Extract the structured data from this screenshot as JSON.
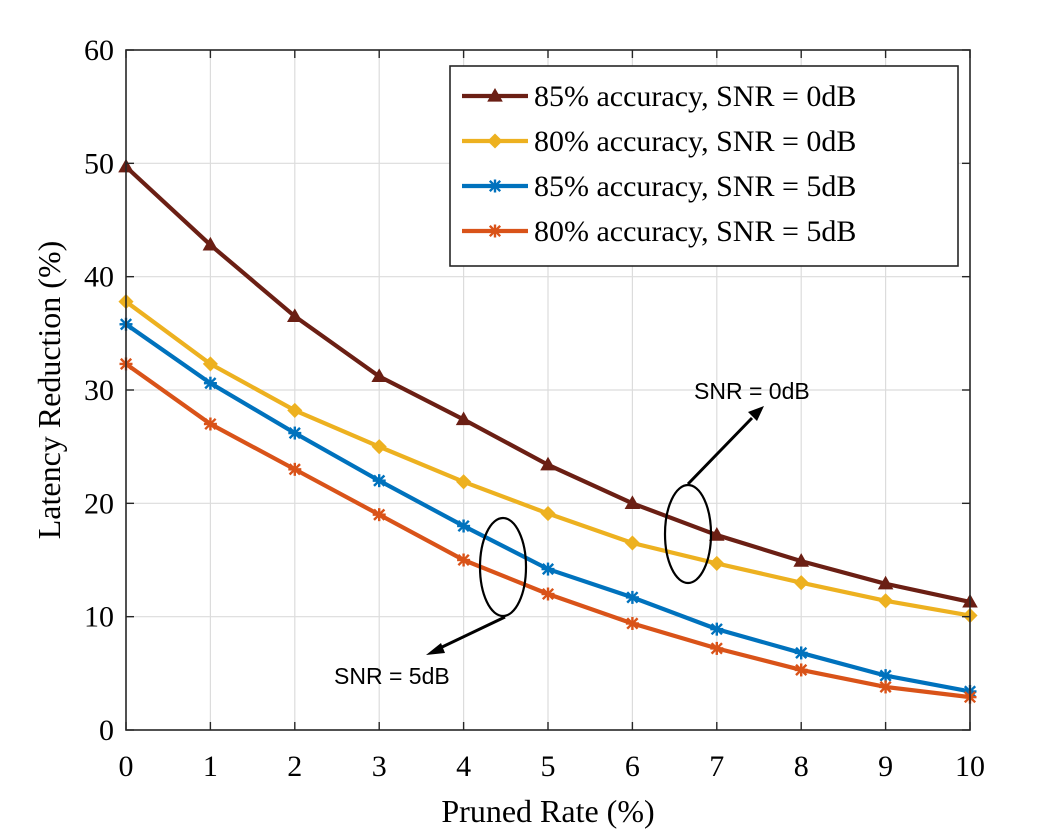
{
  "chart_data": {
    "type": "line",
    "xlabel": "Pruned Rate (%)",
    "ylabel": "Latency Reduction (%)",
    "xlim": [
      0,
      10
    ],
    "ylim": [
      0,
      60
    ],
    "x_ticks": [
      0,
      1,
      2,
      3,
      4,
      5,
      6,
      7,
      8,
      9,
      10
    ],
    "y_ticks": [
      0,
      10,
      20,
      30,
      40,
      50,
      60
    ],
    "grid": true,
    "legend_position": "top-right",
    "x": [
      0,
      1,
      2,
      3,
      4,
      5,
      6,
      7,
      8,
      9,
      10
    ],
    "series": [
      {
        "name": "85% accuracy, SNR = 0dB",
        "color": "#6b1f14",
        "marker": "triangle",
        "values": [
          49.7,
          42.8,
          36.5,
          31.2,
          27.4,
          23.4,
          20.0,
          17.2,
          14.9,
          12.9,
          11.3
        ]
      },
      {
        "name": "80% accuracy, SNR = 0dB",
        "color": "#edb120",
        "marker": "diamond",
        "values": [
          37.8,
          32.3,
          28.2,
          25.0,
          21.9,
          19.1,
          16.5,
          14.7,
          13.0,
          11.4,
          10.1
        ]
      },
      {
        "name": "85% accuracy, SNR = 5dB",
        "color": "#0072bd",
        "marker": "star",
        "values": [
          35.8,
          30.6,
          26.2,
          22.0,
          18.0,
          14.2,
          11.7,
          8.9,
          6.8,
          4.8,
          3.4
        ]
      },
      {
        "name": "80% accuracy, SNR = 5dB",
        "color": "#d95319",
        "marker": "star",
        "values": [
          32.3,
          27.0,
          23.0,
          19.0,
          15.0,
          12.0,
          9.4,
          7.2,
          5.3,
          3.8,
          2.9
        ]
      }
    ],
    "annotations": [
      {
        "text": "SNR = 0dB"
      },
      {
        "text": "SNR = 5dB"
      }
    ]
  }
}
